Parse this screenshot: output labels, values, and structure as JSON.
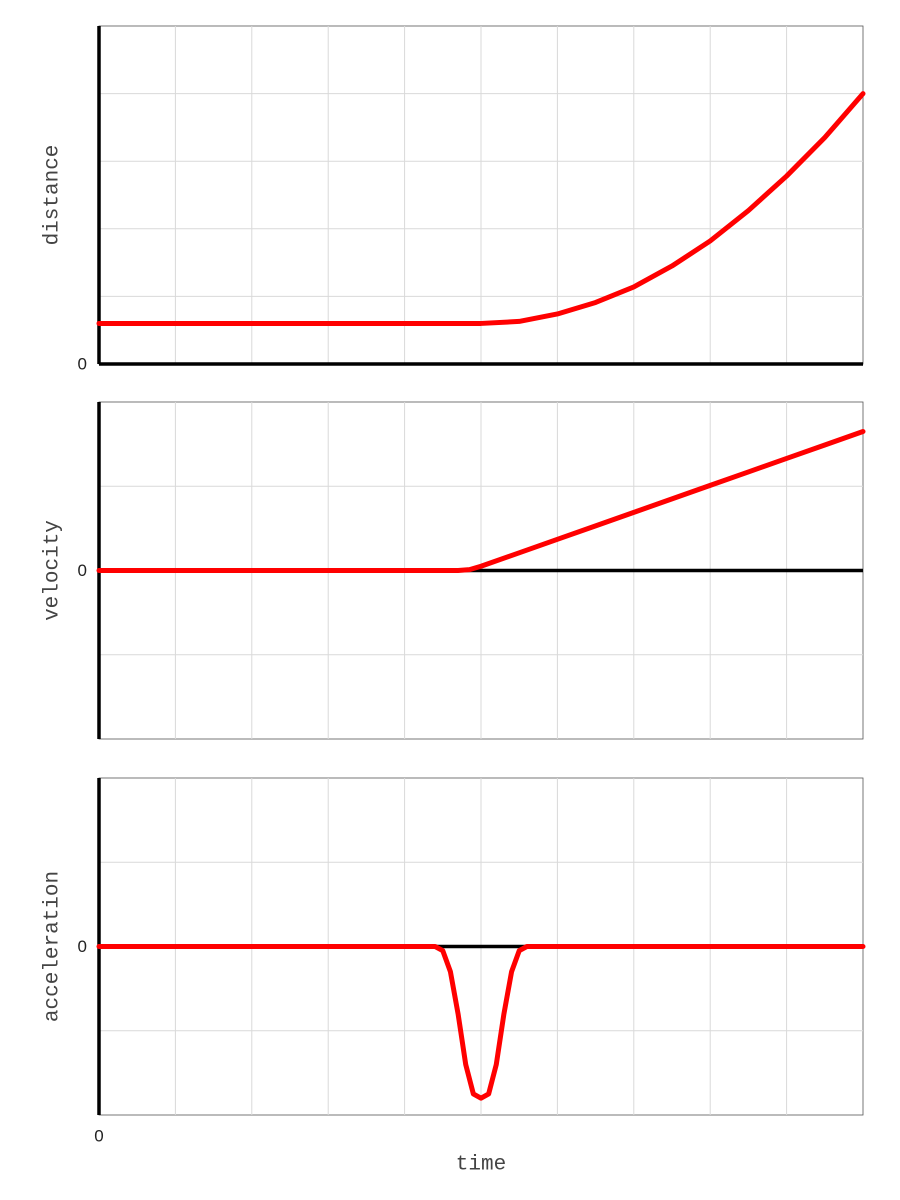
{
  "chart_data": [
    {
      "type": "line",
      "ylabel": "distance",
      "x": [
        0,
        5,
        5.5,
        6,
        6.5,
        7,
        7.5,
        8,
        8.5,
        9,
        9.5,
        10
      ],
      "series": [
        {
          "color": "#ff0000",
          "values": [
            0.6,
            0.6,
            0.63,
            0.74,
            0.91,
            1.14,
            1.45,
            1.82,
            2.27,
            2.78,
            3.35,
            4.0
          ]
        }
      ],
      "xlim": [
        0,
        10
      ],
      "ylim": [
        0,
        5
      ],
      "yticks": [
        0
      ],
      "xgrid": [
        1,
        2,
        3,
        4,
        5,
        6,
        7,
        8,
        9
      ],
      "ygrid": [
        1,
        2,
        3,
        4
      ]
    },
    {
      "type": "line",
      "ylabel": "velocity",
      "x": [
        0,
        4.7,
        4.85,
        5,
        5.5,
        6,
        6.5,
        7,
        7.5,
        8,
        8.5,
        9,
        9.5,
        10
      ],
      "series": [
        {
          "color": "#ff0000",
          "values": [
            0,
            0,
            0.01,
            0.05,
            0.21,
            0.37,
            0.53,
            0.69,
            0.85,
            1.01,
            1.17,
            1.33,
            1.49,
            1.65
          ]
        }
      ],
      "xlim": [
        0,
        10
      ],
      "ylim": [
        -2,
        2
      ],
      "yticks": [
        0
      ],
      "xgrid": [
        1,
        2,
        3,
        4,
        5,
        6,
        7,
        8,
        9
      ],
      "ygrid": [
        -1,
        1
      ]
    },
    {
      "type": "line",
      "ylabel": "acceleration",
      "xlabel": "time",
      "x": [
        0,
        4.4,
        4.5,
        4.6,
        4.7,
        4.8,
        4.9,
        5,
        5.1,
        5.2,
        5.3,
        5.4,
        5.5,
        5.6,
        10
      ],
      "series": [
        {
          "color": "#ff0000",
          "values": [
            0,
            0,
            -0.05,
            -0.3,
            -0.8,
            -1.4,
            -1.75,
            -1.8,
            -1.75,
            -1.4,
            -0.8,
            -0.3,
            -0.05,
            0,
            0
          ]
        }
      ],
      "xlim": [
        0,
        10
      ],
      "ylim": [
        -2,
        2
      ],
      "yticks": [
        0
      ],
      "xticks": [
        0
      ],
      "xgrid": [
        1,
        2,
        3,
        4,
        5,
        6,
        7,
        8,
        9
      ],
      "ygrid": [
        -1,
        1
      ]
    }
  ]
}
